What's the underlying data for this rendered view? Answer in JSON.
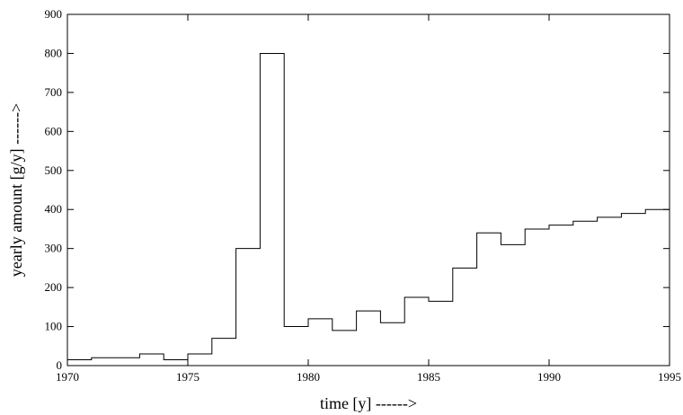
{
  "chart_data": {
    "type": "line",
    "step": true,
    "title": "",
    "xlabel": "time [y] ------>",
    "ylabel": "yearly amount [g/y] ------>",
    "xlim": [
      1970,
      1995
    ],
    "ylim": [
      0,
      900
    ],
    "xticks": [
      1970,
      1975,
      1980,
      1985,
      1990,
      1995
    ],
    "yticks": [
      0,
      100,
      200,
      300,
      400,
      500,
      600,
      700,
      800,
      900
    ],
    "grid": false,
    "legend": "none",
    "line_color": "#000000",
    "series": [
      {
        "x": [
          1970,
          1971,
          1972,
          1973,
          1974,
          1975,
          1976,
          1977,
          1978,
          1979,
          1980,
          1981,
          1982,
          1983,
          1984,
          1985,
          1986,
          1987,
          1988,
          1989,
          1990,
          1991,
          1992,
          1993,
          1994
        ],
        "values": [
          15,
          20,
          20,
          30,
          15,
          30,
          70,
          300,
          800,
          100,
          120,
          90,
          140,
          110,
          175,
          165,
          250,
          340,
          310,
          350,
          360,
          370,
          380,
          390,
          400
        ]
      }
    ]
  }
}
